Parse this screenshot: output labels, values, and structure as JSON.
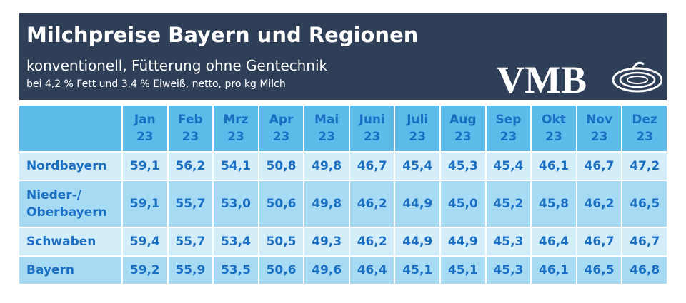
{
  "header": {
    "title": "Milchpreise Bayern und Regionen",
    "subtitle": "konventionell, Fütterung ohne Gentechnik",
    "note": "bei 4,2 % Fett und 3,4 % Eiweiß, netto, pro kg Milch",
    "logo": "VMB"
  },
  "table": {
    "columns": [
      {
        "month": "Jan",
        "year": "23"
      },
      {
        "month": "Feb",
        "year": "23"
      },
      {
        "month": "Mrz",
        "year": "23"
      },
      {
        "month": "Apr",
        "year": "23"
      },
      {
        "month": "Mai",
        "year": "23"
      },
      {
        "month": "Juni",
        "year": "23"
      },
      {
        "month": "Juli",
        "year": "23"
      },
      {
        "month": "Aug",
        "year": "23"
      },
      {
        "month": "Sep",
        "year": "23"
      },
      {
        "month": "Okt",
        "year": "23"
      },
      {
        "month": "Nov",
        "year": "23"
      },
      {
        "month": "Dez",
        "year": "23"
      }
    ],
    "rows": [
      {
        "label": [
          "Nordbayern"
        ],
        "values": [
          "59,1",
          "56,2",
          "54,1",
          "50,8",
          "49,8",
          "46,7",
          "45,4",
          "45,3",
          "45,4",
          "46,1",
          "46,7",
          "47,2"
        ]
      },
      {
        "label": [
          "Nieder-/",
          "Oberbayern"
        ],
        "values": [
          "59,1",
          "55,7",
          "53,0",
          "50,6",
          "49,8",
          "46,2",
          "44,9",
          "45,0",
          "45,2",
          "45,8",
          "46,2",
          "46,5"
        ]
      },
      {
        "label": [
          "Schwaben"
        ],
        "values": [
          "59,4",
          "55,7",
          "53,4",
          "50,5",
          "49,3",
          "46,2",
          "44,9",
          "44,9",
          "45,3",
          "46,4",
          "46,7",
          "46,7"
        ]
      },
      {
        "label": [
          "Bayern"
        ],
        "values": [
          "59,2",
          "55,9",
          "53,5",
          "50,6",
          "49,6",
          "46,4",
          "45,1",
          "45,1",
          "45,3",
          "46,1",
          "46,5",
          "46,8"
        ]
      }
    ]
  }
}
